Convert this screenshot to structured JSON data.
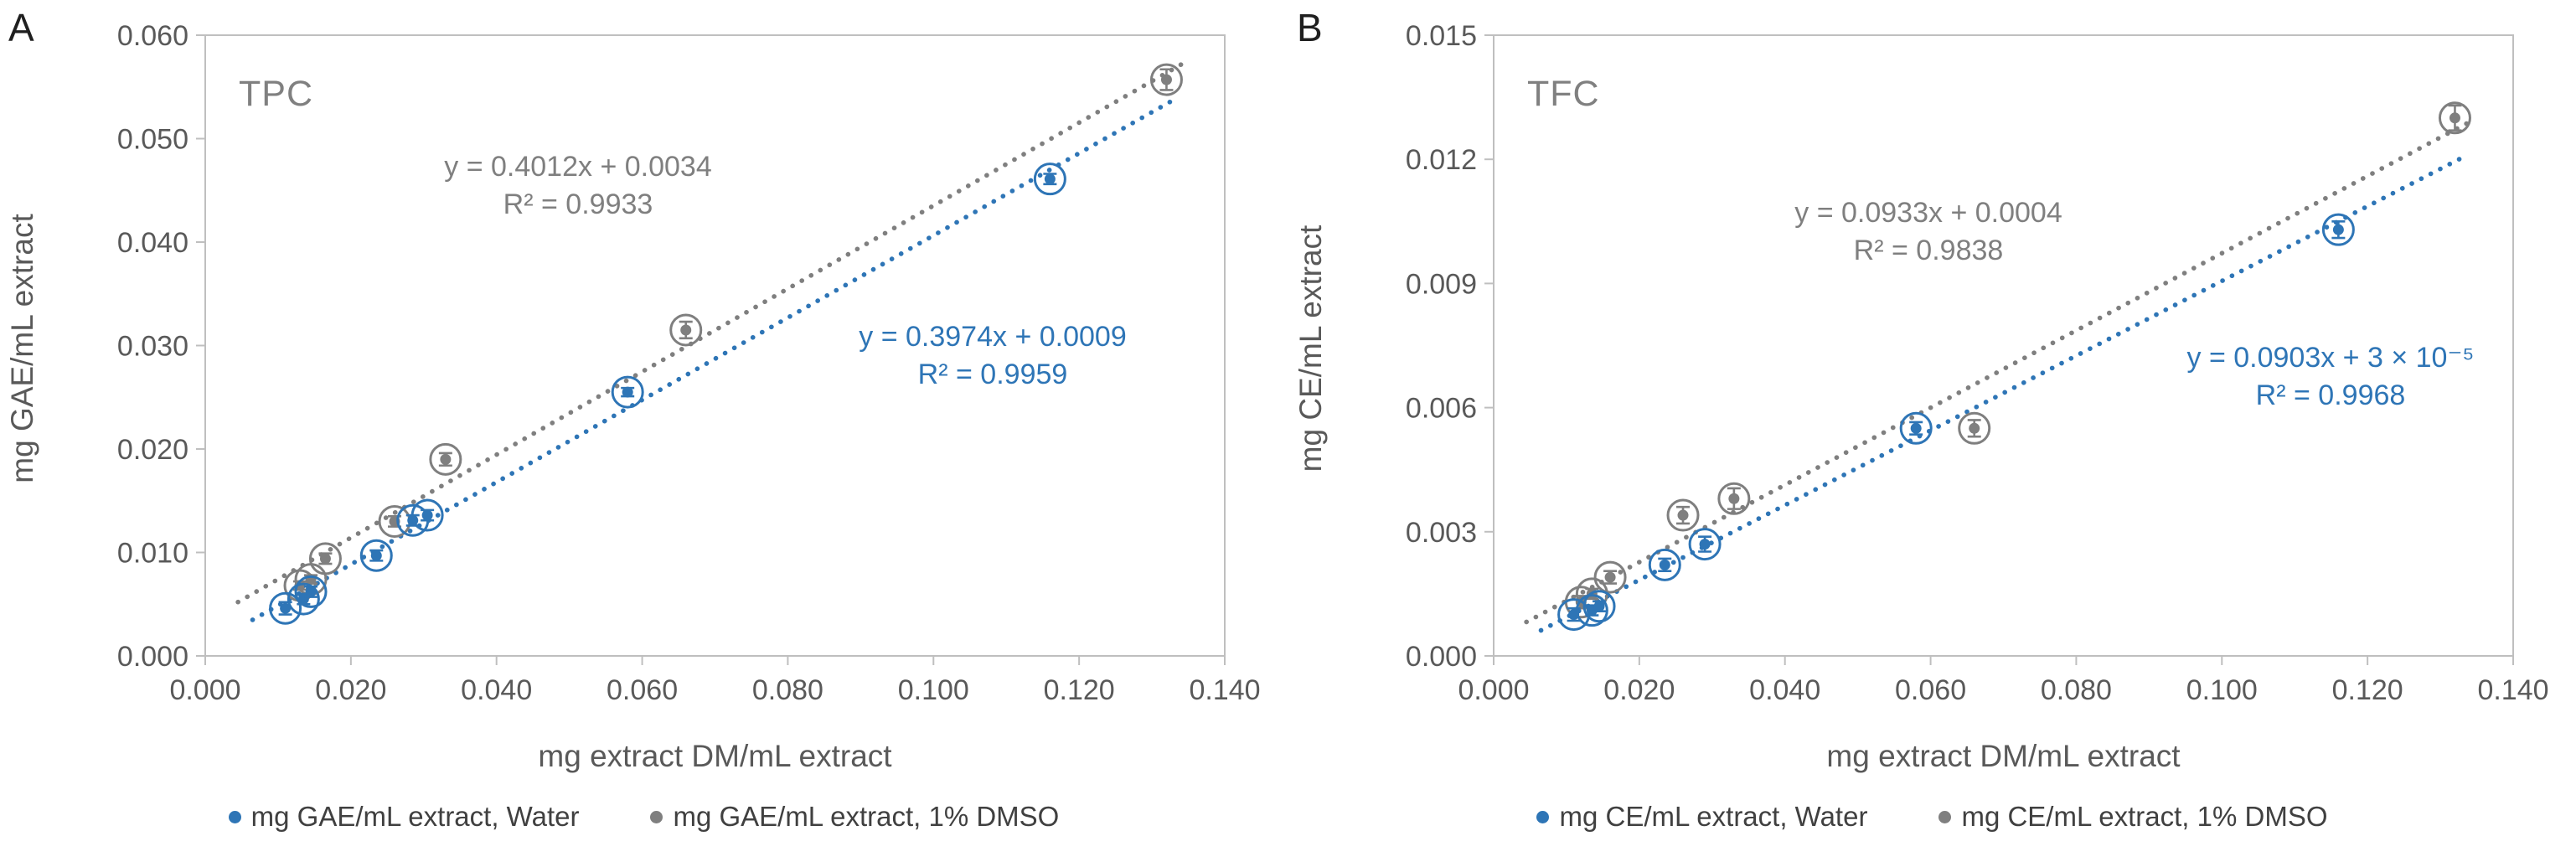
{
  "chart_data": [
    {
      "panel": "A",
      "letter": "A",
      "type": "scatter",
      "title": "TPC",
      "xlabel": "mg extract DM/mL extract",
      "ylabel": "mg GAE/mL extract",
      "xlim": [
        0,
        0.14
      ],
      "ylim": [
        0,
        0.06
      ],
      "x_tick_labels": [
        "0.000",
        "0.020",
        "0.040",
        "0.060",
        "0.080",
        "0.100",
        "0.120",
        "0.140"
      ],
      "y_tick_labels": [
        "0.000",
        "0.010",
        "0.020",
        "0.030",
        "0.040",
        "0.050",
        "0.060"
      ],
      "grid": false,
      "legend_position": "bottom",
      "series": [
        {
          "name": "mg GAE/mL extract, Water",
          "color": "#2E75B6",
          "points": [
            {
              "x": 0.011,
              "y": 0.0046,
              "err": 0.0006
            },
            {
              "x": 0.0135,
              "y": 0.0055,
              "err": 0.0005
            },
            {
              "x": 0.0145,
              "y": 0.0062,
              "err": 0.0005
            },
            {
              "x": 0.0235,
              "y": 0.0097,
              "err": 0.0005
            },
            {
              "x": 0.0285,
              "y": 0.0131,
              "err": 0.0005
            },
            {
              "x": 0.0305,
              "y": 0.0136,
              "err": 0.0005
            },
            {
              "x": 0.058,
              "y": 0.0255,
              "err": 0.0004
            },
            {
              "x": 0.116,
              "y": 0.0461,
              "err": 0.0005
            }
          ],
          "trend": {
            "slope": 0.3974,
            "intercept": 0.0009,
            "x_start": 0.0065,
            "x_end": 0.133,
            "equation": "y = 0.3974x + 0.0009",
            "r2": "R² = 0.9959"
          }
        },
        {
          "name": "mg GAE/mL extract, 1% DMSO",
          "color": "#7F7F7F",
          "points": [
            {
              "x": 0.013,
              "y": 0.0068,
              "err": 0.0004
            },
            {
              "x": 0.0145,
              "y": 0.0074,
              "err": 0.0004
            },
            {
              "x": 0.0165,
              "y": 0.0094,
              "err": 0.0005
            },
            {
              "x": 0.026,
              "y": 0.013,
              "err": 0.0005
            },
            {
              "x": 0.033,
              "y": 0.019,
              "err": 0.0006
            },
            {
              "x": 0.066,
              "y": 0.0315,
              "err": 0.0008
            },
            {
              "x": 0.132,
              "y": 0.0557,
              "err": 0.001
            }
          ],
          "trend": {
            "slope": 0.4012,
            "intercept": 0.0034,
            "x_start": 0.0045,
            "x_end": 0.1345,
            "equation": "y = 0.4012x + 0.0034",
            "r2": "R² = 0.9933"
          }
        }
      ]
    },
    {
      "panel": "B",
      "letter": "B",
      "type": "scatter",
      "title": "TFC",
      "xlabel": "mg extract DM/mL extract",
      "ylabel": "mg CE/mL extract",
      "xlim": [
        0,
        0.14
      ],
      "ylim": [
        0,
        0.015
      ],
      "x_tick_labels": [
        "0.000",
        "0.020",
        "0.040",
        "0.060",
        "0.080",
        "0.100",
        "0.120",
        "0.140"
      ],
      "y_tick_labels": [
        "0.000",
        "0.003",
        "0.006",
        "0.009",
        "0.012",
        "0.015"
      ],
      "grid": false,
      "legend_position": "bottom",
      "series": [
        {
          "name": "mg CE/mL extract, Water",
          "color": "#2E75B6",
          "points": [
            {
              "x": 0.011,
              "y": 0.001,
              "err": 0.00015
            },
            {
              "x": 0.0135,
              "y": 0.0011,
              "err": 0.00012
            },
            {
              "x": 0.0145,
              "y": 0.0012,
              "err": 0.00012
            },
            {
              "x": 0.0235,
              "y": 0.0022,
              "err": 0.00015
            },
            {
              "x": 0.029,
              "y": 0.0027,
              "err": 0.00018
            },
            {
              "x": 0.058,
              "y": 0.0055,
              "err": 0.00015
            },
            {
              "x": 0.116,
              "y": 0.0103,
              "err": 0.0002
            }
          ],
          "trend": {
            "slope": 0.0903,
            "intercept": 3e-05,
            "x_start": 0.0065,
            "x_end": 0.133,
            "equation": "y = 0.0903x + 3 × 10⁻⁵",
            "r2": "R² = 0.9968"
          }
        },
        {
          "name": "mg CE/mL extract, 1% DMSO",
          "color": "#7F7F7F",
          "points": [
            {
              "x": 0.012,
              "y": 0.0013,
              "err": 0.00015
            },
            {
              "x": 0.0135,
              "y": 0.0015,
              "err": 0.00012
            },
            {
              "x": 0.016,
              "y": 0.0019,
              "err": 0.00015
            },
            {
              "x": 0.026,
              "y": 0.0034,
              "err": 0.0002
            },
            {
              "x": 0.033,
              "y": 0.0038,
              "err": 0.00025
            },
            {
              "x": 0.066,
              "y": 0.0055,
              "err": 0.0002
            },
            {
              "x": 0.132,
              "y": 0.013,
              "err": 0.0003
            }
          ],
          "trend": {
            "slope": 0.0933,
            "intercept": 0.0004,
            "x_start": 0.0045,
            "x_end": 0.1345,
            "equation": "y = 0.0933x + 0.0004",
            "r2": "R² = 0.9838"
          }
        }
      ]
    }
  ],
  "colors": {
    "water": "#2E75B6",
    "dmso": "#7F7F7F",
    "axis": "#BFBFBF",
    "tick_text": "#595959",
    "title_text": "#808080"
  }
}
